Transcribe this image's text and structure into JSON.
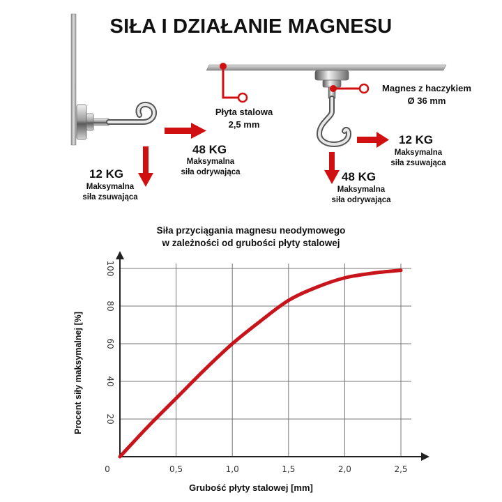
{
  "title": "SIŁA I DZIAŁANIE MAGNESU",
  "left_diagram": {
    "down_value": "12 KG",
    "down_caption_1": "Maksymalna",
    "down_caption_2": "siła zsuwająca",
    "right_value": "48 KG",
    "right_caption_1": "Maksymalna",
    "right_caption_2": "siła odrywająca"
  },
  "right_diagram": {
    "plate_label_1": "Płyta stalowa",
    "plate_label_2": "2,5 mm",
    "magnet_label_1": "Magnes z haczykiem",
    "magnet_label_2": "Ø 36 mm",
    "side_value": "12 KG",
    "side_caption_1": "Maksymalna",
    "side_caption_2": "siła zsuwająca",
    "down_value": "48 KG",
    "down_caption_1": "Maksymalna",
    "down_caption_2": "siła odrywająca"
  },
  "colors": {
    "accent_red": "#d01010",
    "curve_red": "#c8141b",
    "steel": "#b8b8b8"
  },
  "chart_data": {
    "type": "line",
    "title_line_1": "Siła przyciągania magnesu neodymowego",
    "title_line_2": "w zależności od grubości płyty stalowej",
    "xlabel": "Grubość płyty stalowej [mm]",
    "ylabel": "Procent siły maksymalnej [%]",
    "xlim": [
      0,
      2.75
    ],
    "ylim": [
      0,
      105
    ],
    "x_ticks": [
      0.5,
      1.0,
      1.5,
      2.0,
      2.5
    ],
    "x_tick_labels": [
      "0,5",
      "1,0",
      "1,5",
      "2,0",
      "2,5"
    ],
    "y_ticks": [
      20,
      40,
      60,
      80,
      100
    ],
    "y_tick_labels": [
      "20",
      "40",
      "60",
      "80",
      "100"
    ],
    "origin_label": "0",
    "grid": true,
    "series": [
      {
        "x": [
          0,
          0.25,
          0.5,
          0.75,
          1.0,
          1.25,
          1.5,
          1.75,
          2.0,
          2.25,
          2.5
        ],
        "y": [
          0,
          16,
          31,
          46,
          60,
          72,
          83,
          90,
          95,
          97.5,
          99
        ]
      }
    ]
  }
}
